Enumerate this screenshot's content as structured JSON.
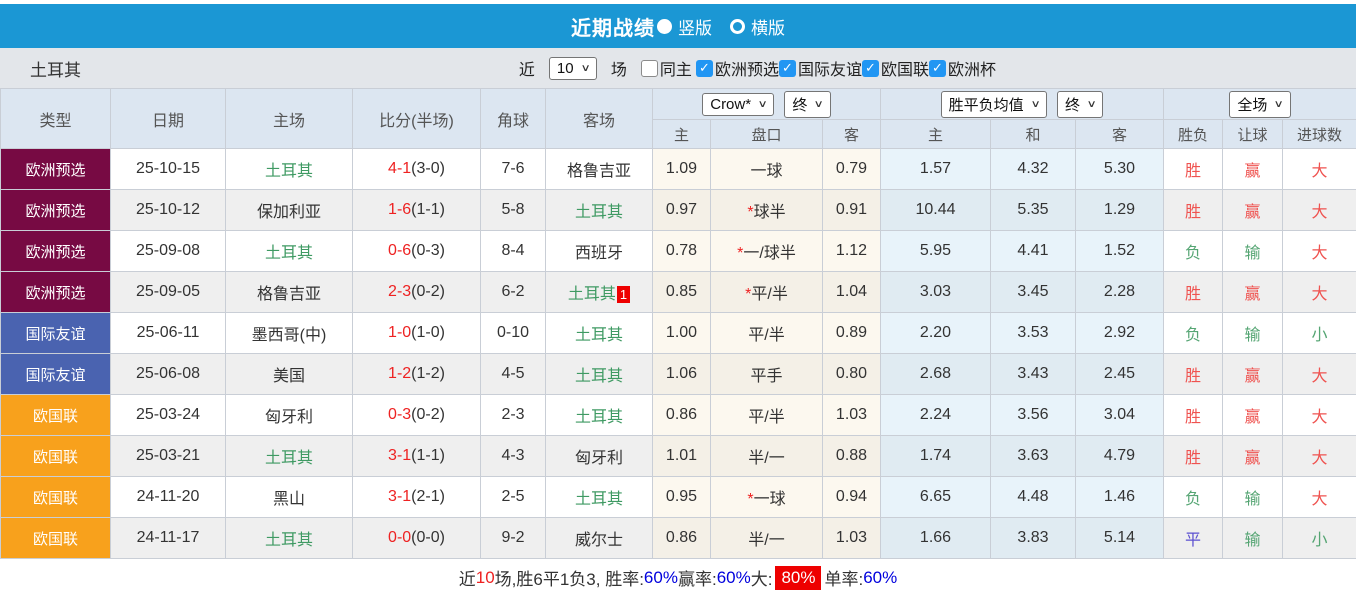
{
  "topbar": {
    "title": "近期战绩",
    "radio_vertical": "竖版",
    "radio_horizontal": "横版"
  },
  "filter": {
    "team": "土耳其",
    "near_label": "近",
    "count_value": "10",
    "games_label": "场",
    "same_home_label": "同主",
    "competitions": [
      {
        "label": "欧洲预选",
        "checked": true
      },
      {
        "label": "国际友谊",
        "checked": true
      },
      {
        "label": "欧国联",
        "checked": true
      },
      {
        "label": "欧洲杯",
        "checked": true
      }
    ]
  },
  "table": {
    "main_headers": [
      "类型",
      "日期",
      "主场",
      "比分(半场)",
      "角球",
      "客场"
    ],
    "dropdowns": {
      "bookmaker": "Crow*",
      "odds_time": "终",
      "mean_label": "胜平负均值",
      "mean_time": "终",
      "scope": "全场"
    },
    "subheaders": [
      "主",
      "盘口",
      "客",
      "主",
      "和",
      "客",
      "胜负",
      "让球",
      "进球数"
    ],
    "accent_colors": {
      "qual_badge": "#770a43",
      "friendly_badge": "#4a63b0",
      "nations_badge": "#f8a11c",
      "win_red": "#ef5350",
      "lose_green": "#55a573",
      "draw_blue": "#5b4fd0",
      "turkey_green": "#3f9a63",
      "score_red": "#ee2222",
      "topbar_blue": "#1b97d4"
    },
    "rows": [
      {
        "type": "欧洲预选",
        "k": "qual",
        "date": "25-10-15",
        "home": "土耳其",
        "ht": true,
        "score": "4-1",
        "half": "(3-0)",
        "corner": "7-6",
        "away": "格鲁吉亚",
        "at": false,
        "badge": "",
        "oh": "1.09",
        "star": false,
        "hc": "一球",
        "oa": "0.79",
        "mh": "1.57",
        "md": "4.32",
        "ma": "5.30",
        "r1": [
          "胜",
          "r"
        ],
        "r2": [
          "赢",
          "r"
        ],
        "r3": [
          "大",
          "r"
        ]
      },
      {
        "type": "欧洲预选",
        "k": "qual",
        "date": "25-10-12",
        "home": "保加利亚",
        "ht": false,
        "score": "1-6",
        "half": "(1-1)",
        "corner": "5-8",
        "away": "土耳其",
        "at": true,
        "badge": "",
        "oh": "0.97",
        "star": true,
        "hc": "球半",
        "oa": "0.91",
        "mh": "10.44",
        "md": "5.35",
        "ma": "1.29",
        "r1": [
          "胜",
          "r"
        ],
        "r2": [
          "赢",
          "r"
        ],
        "r3": [
          "大",
          "r"
        ]
      },
      {
        "type": "欧洲预选",
        "k": "qual",
        "date": "25-09-08",
        "home": "土耳其",
        "ht": true,
        "score": "0-6",
        "half": "(0-3)",
        "corner": "8-4",
        "away": "西班牙",
        "at": false,
        "badge": "",
        "oh": "0.78",
        "star": true,
        "hc": "一/球半",
        "oa": "1.12",
        "mh": "5.95",
        "md": "4.41",
        "ma": "1.52",
        "r1": [
          "负",
          "g"
        ],
        "r2": [
          "输",
          "g"
        ],
        "r3": [
          "大",
          "r"
        ]
      },
      {
        "type": "欧洲预选",
        "k": "qual",
        "date": "25-09-05",
        "home": "格鲁吉亚",
        "ht": false,
        "score": "2-3",
        "half": "(0-2)",
        "corner": "6-2",
        "away": "土耳其",
        "at": true,
        "badge": "1",
        "oh": "0.85",
        "star": true,
        "hc": "平/半",
        "oa": "1.04",
        "mh": "3.03",
        "md": "3.45",
        "ma": "2.28",
        "r1": [
          "胜",
          "r"
        ],
        "r2": [
          "赢",
          "r"
        ],
        "r3": [
          "大",
          "r"
        ]
      },
      {
        "type": "国际友谊",
        "k": "friendly",
        "date": "25-06-11",
        "home": "墨西哥(中)",
        "ht": false,
        "score": "1-0",
        "half": "(1-0)",
        "corner": "0-10",
        "away": "土耳其",
        "at": true,
        "badge": "",
        "oh": "1.00",
        "star": false,
        "hc": "平/半",
        "oa": "0.89",
        "mh": "2.20",
        "md": "3.53",
        "ma": "2.92",
        "r1": [
          "负",
          "g"
        ],
        "r2": [
          "输",
          "g"
        ],
        "r3": [
          "小",
          "g"
        ]
      },
      {
        "type": "国际友谊",
        "k": "friendly",
        "date": "25-06-08",
        "home": "美国",
        "ht": false,
        "score": "1-2",
        "half": "(1-2)",
        "corner": "4-5",
        "away": "土耳其",
        "at": true,
        "badge": "",
        "oh": "1.06",
        "star": false,
        "hc": "平手",
        "oa": "0.80",
        "mh": "2.68",
        "md": "3.43",
        "ma": "2.45",
        "r1": [
          "胜",
          "r"
        ],
        "r2": [
          "赢",
          "r"
        ],
        "r3": [
          "大",
          "r"
        ]
      },
      {
        "type": "欧国联",
        "k": "nations",
        "date": "25-03-24",
        "home": "匈牙利",
        "ht": false,
        "score": "0-3",
        "half": "(0-2)",
        "corner": "2-3",
        "away": "土耳其",
        "at": true,
        "badge": "",
        "oh": "0.86",
        "star": false,
        "hc": "平/半",
        "oa": "1.03",
        "mh": "2.24",
        "md": "3.56",
        "ma": "3.04",
        "r1": [
          "胜",
          "r"
        ],
        "r2": [
          "赢",
          "r"
        ],
        "r3": [
          "大",
          "r"
        ]
      },
      {
        "type": "欧国联",
        "k": "nations",
        "date": "25-03-21",
        "home": "土耳其",
        "ht": true,
        "score": "3-1",
        "half": "(1-1)",
        "corner": "4-3",
        "away": "匈牙利",
        "at": false,
        "badge": "",
        "oh": "1.01",
        "star": false,
        "hc": "半/一",
        "oa": "0.88",
        "mh": "1.74",
        "md": "3.63",
        "ma": "4.79",
        "r1": [
          "胜",
          "r"
        ],
        "r2": [
          "赢",
          "r"
        ],
        "r3": [
          "大",
          "r"
        ]
      },
      {
        "type": "欧国联",
        "k": "nations",
        "date": "24-11-20",
        "home": "黑山",
        "ht": false,
        "score": "3-1",
        "half": "(2-1)",
        "corner": "2-5",
        "away": "土耳其",
        "at": true,
        "badge": "",
        "oh": "0.95",
        "star": true,
        "hc": "一球",
        "oa": "0.94",
        "mh": "6.65",
        "md": "4.48",
        "ma": "1.46",
        "r1": [
          "负",
          "g"
        ],
        "r2": [
          "输",
          "g"
        ],
        "r3": [
          "大",
          "r"
        ]
      },
      {
        "type": "欧国联",
        "k": "nations",
        "date": "24-11-17",
        "home": "土耳其",
        "ht": true,
        "score": "0-0",
        "half": "(0-0)",
        "corner": "9-2",
        "away": "威尔士",
        "at": false,
        "badge": "",
        "oh": "0.86",
        "star": false,
        "hc": "半/一",
        "oa": "1.03",
        "mh": "1.66",
        "md": "3.83",
        "ma": "5.14",
        "r1": [
          "平",
          "b"
        ],
        "r2": [
          "输",
          "g"
        ],
        "r3": [
          "小",
          "g"
        ]
      }
    ]
  },
  "summary": {
    "segments": [
      {
        "t": "近",
        "c": "dark"
      },
      {
        "t": "10",
        "c": "red"
      },
      {
        "t": "场,胜6平1负3, 胜率:",
        "c": "dark"
      },
      {
        "t": "60%",
        "c": "blue"
      },
      {
        "t": " 赢率:",
        "c": "dark"
      },
      {
        "t": "60%",
        "c": "blue"
      },
      {
        "t": " 大:",
        "c": "dark"
      },
      {
        "t": "80%",
        "c": "redbg"
      },
      {
        "t": " 单率:",
        "c": "dark"
      },
      {
        "t": "60%",
        "c": "blue"
      }
    ]
  }
}
